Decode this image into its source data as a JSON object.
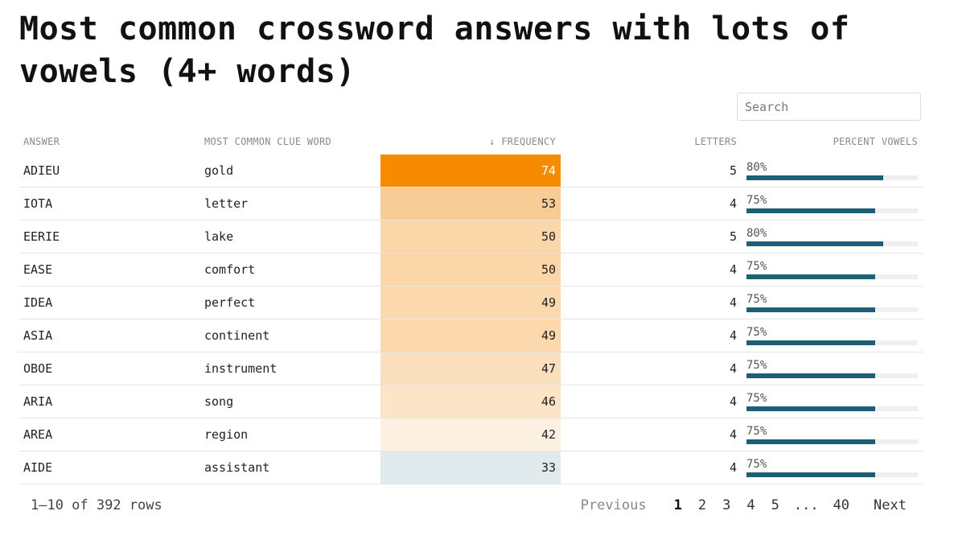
{
  "title": "Most common crossword answers with lots of vowels (4+ words)",
  "search": {
    "placeholder": "Search"
  },
  "columns": {
    "answer": "ANSWER",
    "clue": "MOST COMMON CLUE WORD",
    "frequency": "↓ FREQUENCY",
    "letters": "LETTERS",
    "percent": "PERCENT VOWELS"
  },
  "colors": {
    "freq_max": "#f78b00",
    "freq_high": "#f9c48a",
    "freq_mid": "#fce4c6",
    "freq_low": "#e1eaed",
    "vowel_bar": "#1f5f75"
  },
  "rows": [
    {
      "answer": "ADIEU",
      "clue": "gold",
      "frequency": 74,
      "letters": 5,
      "percent": "80%",
      "percent_value": 0.8,
      "freq_color": "#f78b00",
      "freq_text_color": "#ffffff"
    },
    {
      "answer": "IOTA",
      "clue": "letter",
      "frequency": 53,
      "letters": 4,
      "percent": "75%",
      "percent_value": 0.75,
      "freq_color": "#f9cc95",
      "freq_text_color": "#222222"
    },
    {
      "answer": "EERIE",
      "clue": "lake",
      "frequency": 50,
      "letters": 5,
      "percent": "80%",
      "percent_value": 0.8,
      "freq_color": "#fbd6a9",
      "freq_text_color": "#222222"
    },
    {
      "answer": "EASE",
      "clue": "comfort",
      "frequency": 50,
      "letters": 4,
      "percent": "75%",
      "percent_value": 0.75,
      "freq_color": "#fbd6a9",
      "freq_text_color": "#222222"
    },
    {
      "answer": "IDEA",
      "clue": "perfect",
      "frequency": 49,
      "letters": 4,
      "percent": "75%",
      "percent_value": 0.75,
      "freq_color": "#fbd8ad",
      "freq_text_color": "#222222"
    },
    {
      "answer": "ASIA",
      "clue": "continent",
      "frequency": 49,
      "letters": 4,
      "percent": "75%",
      "percent_value": 0.75,
      "freq_color": "#fbd8ad",
      "freq_text_color": "#222222"
    },
    {
      "answer": "OBOE",
      "clue": "instrument",
      "frequency": 47,
      "letters": 4,
      "percent": "75%",
      "percent_value": 0.75,
      "freq_color": "#fcdfbd",
      "freq_text_color": "#222222"
    },
    {
      "answer": "ARIA",
      "clue": "song",
      "frequency": 46,
      "letters": 4,
      "percent": "75%",
      "percent_value": 0.75,
      "freq_color": "#fce4c7",
      "freq_text_color": "#222222"
    },
    {
      "answer": "AREA",
      "clue": "region",
      "frequency": 42,
      "letters": 4,
      "percent": "75%",
      "percent_value": 0.75,
      "freq_color": "#fcf0e1",
      "freq_text_color": "#222222"
    },
    {
      "answer": "AIDE",
      "clue": "assistant",
      "frequency": 33,
      "letters": 4,
      "percent": "75%",
      "percent_value": 0.75,
      "freq_color": "#e1eaed",
      "freq_text_color": "#222222"
    }
  ],
  "footer": {
    "row_count": "1–10 of 392 rows",
    "previous": "Previous",
    "pages": [
      "1",
      "2",
      "3",
      "4",
      "5"
    ],
    "current_page": "1",
    "ellipsis": "...",
    "last_page": "40",
    "next": "Next"
  }
}
